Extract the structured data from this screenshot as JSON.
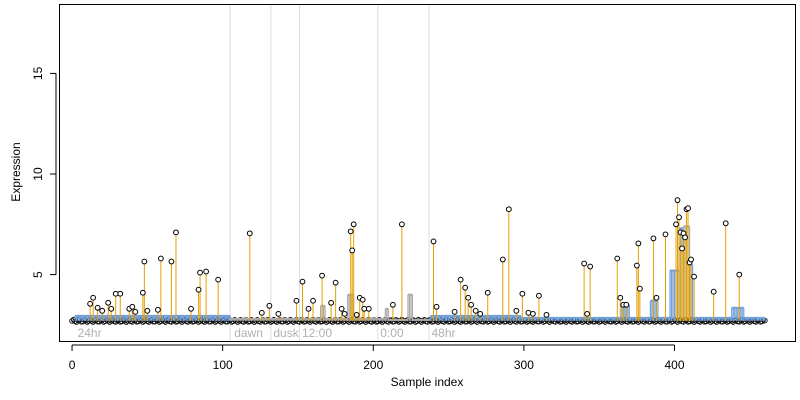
{
  "chart_data": {
    "type": "scatter",
    "title": "",
    "xlabel": "Sample index",
    "ylabel": "Expression",
    "xlim": [
      -8,
      480
    ],
    "ylim": [
      1.7,
      18.4
    ],
    "grid": false,
    "x_ticks": [
      0,
      100,
      200,
      300,
      400
    ],
    "y_ticks": [
      5,
      10,
      15
    ],
    "x_tick_labels": [
      "0",
      "100",
      "200",
      "300",
      "400"
    ],
    "y_tick_labels": [
      "5",
      "10",
      "15"
    ],
    "baseline": 2.7,
    "region_boundaries": [
      105,
      132,
      151,
      203,
      237
    ],
    "region_labels": [
      {
        "x": 3,
        "text": "24hr"
      },
      {
        "x": 107,
        "text": "dawn"
      },
      {
        "x": 133,
        "text": "dusk"
      },
      {
        "x": 152,
        "text": "12:00"
      },
      {
        "x": 204,
        "text": "0:00"
      },
      {
        "x": 238,
        "text": "48hr"
      }
    ],
    "step_series": [
      {
        "x0": 2,
        "x1": 105,
        "y": 2.95,
        "color": "#6f9fdc"
      },
      {
        "x0": 105,
        "x1": 165,
        "y": 2.8,
        "color": "#aaaaaa"
      },
      {
        "x0": 165,
        "x1": 168,
        "y": 3.45,
        "color": "#aaaaaa"
      },
      {
        "x0": 168,
        "x1": 183,
        "y": 2.8,
        "color": "#aaaaaa"
      },
      {
        "x0": 183,
        "x1": 187,
        "y": 4.0,
        "color": "#aaaaaa"
      },
      {
        "x0": 187,
        "x1": 208,
        "y": 2.8,
        "color": "#aaaaaa"
      },
      {
        "x0": 208,
        "x1": 210,
        "y": 3.3,
        "color": "#aaaaaa"
      },
      {
        "x0": 210,
        "x1": 223,
        "y": 2.75,
        "color": "#aaaaaa"
      },
      {
        "x0": 223,
        "x1": 226,
        "y": 4.0,
        "color": "#aaaaaa"
      },
      {
        "x0": 226,
        "x1": 238,
        "y": 2.75,
        "color": "#aaaaaa"
      },
      {
        "x0": 238,
        "x1": 298,
        "y": 2.95,
        "color": "#6f9fdc"
      },
      {
        "x0": 298,
        "x1": 365,
        "y": 2.85,
        "color": "#6f9fdc"
      },
      {
        "x0": 365,
        "x1": 370,
        "y": 3.5,
        "color": "#6f9fdc"
      },
      {
        "x0": 370,
        "x1": 384,
        "y": 2.85,
        "color": "#6f9fdc"
      },
      {
        "x0": 384,
        "x1": 389,
        "y": 3.7,
        "color": "#6f9fdc"
      },
      {
        "x0": 389,
        "x1": 397,
        "y": 2.85,
        "color": "#6f9fdc"
      },
      {
        "x0": 397,
        "x1": 403,
        "y": 5.2,
        "color": "#6f9fdc"
      },
      {
        "x0": 403,
        "x1": 406,
        "y": 7.3,
        "color": "#6f9fdc"
      },
      {
        "x0": 406,
        "x1": 410,
        "y": 7.4,
        "color": "#aaaaaa"
      },
      {
        "x0": 410,
        "x1": 412,
        "y": 5.5,
        "color": "#6f9fdc"
      },
      {
        "x0": 412,
        "x1": 438,
        "y": 2.85,
        "color": "#6f9fdc"
      },
      {
        "x0": 438,
        "x1": 446,
        "y": 3.35,
        "color": "#6f9fdc"
      },
      {
        "x0": 446,
        "x1": 460,
        "y": 2.85,
        "color": "#6f9fdc"
      }
    ],
    "spike_color": "#e69f00",
    "points": [
      {
        "x": 12,
        "y": 3.55
      },
      {
        "x": 14,
        "y": 3.85
      },
      {
        "x": 17,
        "y": 3.35
      },
      {
        "x": 20,
        "y": 3.2
      },
      {
        "x": 24,
        "y": 3.6
      },
      {
        "x": 26,
        "y": 3.3
      },
      {
        "x": 29,
        "y": 4.05
      },
      {
        "x": 32,
        "y": 4.05
      },
      {
        "x": 38,
        "y": 3.3
      },
      {
        "x": 40,
        "y": 3.4
      },
      {
        "x": 42,
        "y": 3.15
      },
      {
        "x": 47,
        "y": 4.1
      },
      {
        "x": 48,
        "y": 5.65
      },
      {
        "x": 50,
        "y": 3.2
      },
      {
        "x": 57,
        "y": 3.25
      },
      {
        "x": 59,
        "y": 5.8
      },
      {
        "x": 66,
        "y": 5.65
      },
      {
        "x": 69,
        "y": 7.1
      },
      {
        "x": 79,
        "y": 3.3
      },
      {
        "x": 84,
        "y": 4.25
      },
      {
        "x": 85,
        "y": 5.1
      },
      {
        "x": 89,
        "y": 5.15
      },
      {
        "x": 97,
        "y": 4.75
      },
      {
        "x": 118,
        "y": 7.05
      },
      {
        "x": 126,
        "y": 3.1
      },
      {
        "x": 131,
        "y": 3.45
      },
      {
        "x": 137,
        "y": 3.05
      },
      {
        "x": 149,
        "y": 3.7
      },
      {
        "x": 153,
        "y": 4.65
      },
      {
        "x": 157,
        "y": 3.3
      },
      {
        "x": 160,
        "y": 3.7
      },
      {
        "x": 166,
        "y": 4.95
      },
      {
        "x": 172,
        "y": 3.6
      },
      {
        "x": 175,
        "y": 4.6
      },
      {
        "x": 179,
        "y": 3.3
      },
      {
        "x": 181,
        "y": 3.05
      },
      {
        "x": 185,
        "y": 7.15
      },
      {
        "x": 186,
        "y": 6.2
      },
      {
        "x": 187,
        "y": 7.5
      },
      {
        "x": 189,
        "y": 3.0
      },
      {
        "x": 191,
        "y": 3.85
      },
      {
        "x": 193,
        "y": 3.75
      },
      {
        "x": 194,
        "y": 3.3
      },
      {
        "x": 197,
        "y": 3.3
      },
      {
        "x": 213,
        "y": 3.5
      },
      {
        "x": 219,
        "y": 7.5
      },
      {
        "x": 240,
        "y": 6.65
      },
      {
        "x": 242,
        "y": 3.4
      },
      {
        "x": 254,
        "y": 3.15
      },
      {
        "x": 258,
        "y": 4.75
      },
      {
        "x": 261,
        "y": 4.35
      },
      {
        "x": 263,
        "y": 3.85
      },
      {
        "x": 265,
        "y": 3.5
      },
      {
        "x": 268,
        "y": 3.2
      },
      {
        "x": 271,
        "y": 3.05
      },
      {
        "x": 276,
        "y": 4.1
      },
      {
        "x": 286,
        "y": 5.75
      },
      {
        "x": 290,
        "y": 8.25
      },
      {
        "x": 295,
        "y": 3.2
      },
      {
        "x": 299,
        "y": 4.05
      },
      {
        "x": 303,
        "y": 3.1
      },
      {
        "x": 306,
        "y": 3.05
      },
      {
        "x": 310,
        "y": 3.95
      },
      {
        "x": 315,
        "y": 3.0
      },
      {
        "x": 340,
        "y": 5.55
      },
      {
        "x": 342,
        "y": 3.05
      },
      {
        "x": 344,
        "y": 5.4
      },
      {
        "x": 362,
        "y": 5.8
      },
      {
        "x": 364,
        "y": 3.85
      },
      {
        "x": 366,
        "y": 3.5
      },
      {
        "x": 368,
        "y": 3.5
      },
      {
        "x": 375,
        "y": 5.45
      },
      {
        "x": 376,
        "y": 6.55
      },
      {
        "x": 377,
        "y": 4.3
      },
      {
        "x": 386,
        "y": 6.8
      },
      {
        "x": 388,
        "y": 3.85
      },
      {
        "x": 394,
        "y": 7.0
      },
      {
        "x": 401,
        "y": 7.5
      },
      {
        "x": 402,
        "y": 8.7
      },
      {
        "x": 403,
        "y": 7.85
      },
      {
        "x": 404,
        "y": 7.1
      },
      {
        "x": 405,
        "y": 6.3
      },
      {
        "x": 406,
        "y": 7.05
      },
      {
        "x": 407,
        "y": 6.85
      },
      {
        "x": 408,
        "y": 8.25
      },
      {
        "x": 409,
        "y": 8.3
      },
      {
        "x": 410,
        "y": 5.6
      },
      {
        "x": 411,
        "y": 5.75
      },
      {
        "x": 413,
        "y": 4.9
      },
      {
        "x": 426,
        "y": 4.15
      },
      {
        "x": 434,
        "y": 7.55
      },
      {
        "x": 443,
        "y": 5.0
      }
    ]
  }
}
